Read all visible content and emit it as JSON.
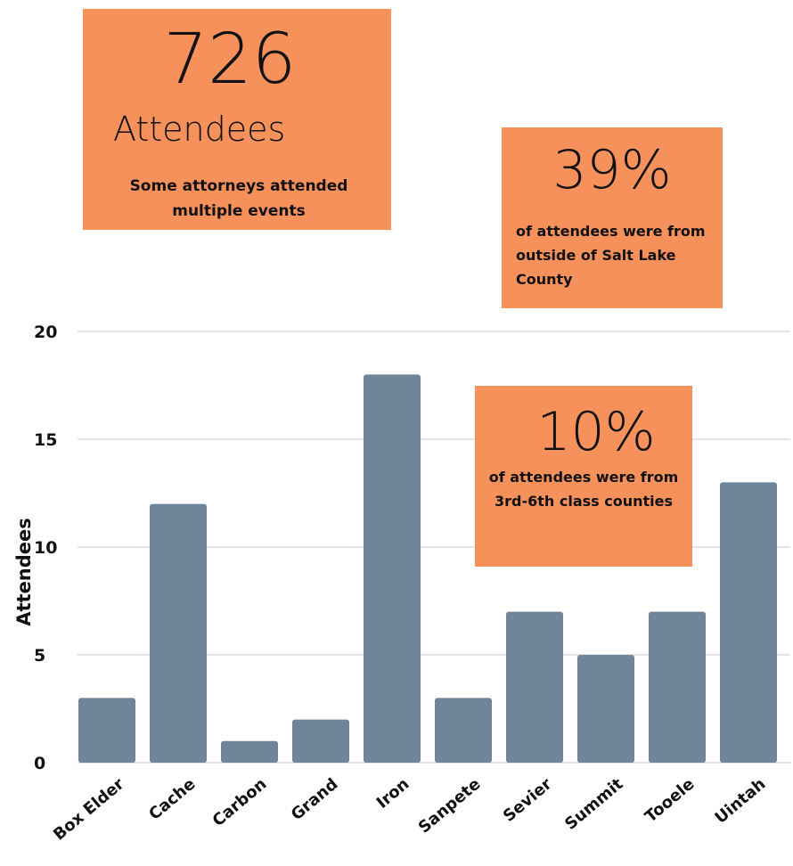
{
  "colors": {
    "bar": "#6f8599",
    "callout_bg": "#f6915b",
    "grid": "#c9c9c9",
    "text": "#111111"
  },
  "callouts": {
    "attendees": {
      "number": "726",
      "label": "Attendees",
      "note": "Some attorneys attended multiple events"
    },
    "outside_salt_lake": {
      "number": "39%",
      "note": "of attendees were from outside of Salt Lake County"
    },
    "class_counties": {
      "number": "10%",
      "note": "of attendees were from 3rd-6th class counties"
    }
  },
  "chart_data": {
    "type": "bar",
    "title": "",
    "xlabel": "",
    "ylabel": "Attendees",
    "categories": [
      "Box Elder",
      "Cache",
      "Carbon",
      "Grand",
      "Iron",
      "Sanpete",
      "Sevier",
      "Summit",
      "Tooele",
      "Uintah"
    ],
    "values": [
      3,
      12,
      1,
      2,
      18,
      3,
      7,
      5,
      7,
      13
    ],
    "ylim": [
      0,
      20
    ],
    "yticks": [
      0,
      5,
      10,
      15,
      20
    ],
    "grid": true
  }
}
